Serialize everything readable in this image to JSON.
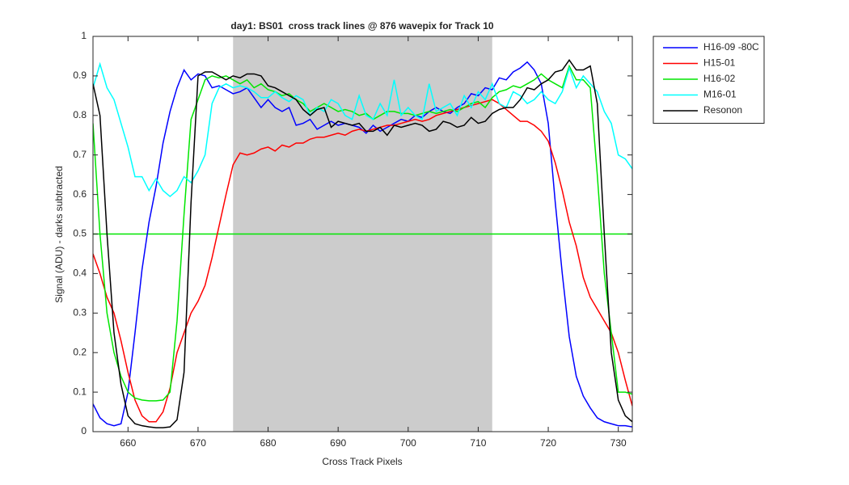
{
  "chart_data": {
    "type": "line",
    "title": "day1: BS01  cross track lines @ 876 wavepix for Track 10",
    "x_label": "Cross Track Pixels",
    "y_label": "Signal (ADU) - darks subtracted",
    "xlim": [
      655,
      732
    ],
    "ylim": [
      0,
      1
    ],
    "xticks": [
      660,
      670,
      680,
      690,
      700,
      710,
      720,
      730
    ],
    "yticks": [
      0,
      0.1,
      0.2,
      0.3,
      0.4,
      0.5,
      0.6,
      0.7,
      0.8,
      0.9,
      1
    ],
    "shade": {
      "xlim": [
        675,
        712
      ],
      "color": "#cccccc"
    },
    "hline": {
      "value": 0.5,
      "color": "#00e600"
    },
    "legend": "outside-top-right",
    "x": [
      655,
      656,
      657,
      658,
      659,
      660,
      661,
      662,
      663,
      664,
      665,
      666,
      667,
      668,
      669,
      670,
      671,
      672,
      673,
      674,
      675,
      676,
      677,
      678,
      679,
      680,
      681,
      682,
      683,
      684,
      685,
      686,
      687,
      688,
      689,
      690,
      691,
      692,
      693,
      694,
      695,
      696,
      697,
      698,
      699,
      700,
      701,
      702,
      703,
      704,
      705,
      706,
      707,
      708,
      709,
      710,
      711,
      712,
      713,
      714,
      715,
      716,
      717,
      718,
      719,
      720,
      721,
      722,
      723,
      724,
      725,
      726,
      727,
      728,
      729,
      730,
      731,
      732
    ],
    "series": [
      {
        "name": "H16-09 -80C",
        "color": "#0000ff",
        "values": [
          0.07,
          0.035,
          0.02,
          0.015,
          0.02,
          0.1,
          0.25,
          0.41,
          0.53,
          0.62,
          0.73,
          0.81,
          0.87,
          0.915,
          0.89,
          0.905,
          0.9,
          0.87,
          0.875,
          0.865,
          0.855,
          0.86,
          0.87,
          0.845,
          0.82,
          0.84,
          0.82,
          0.81,
          0.82,
          0.775,
          0.78,
          0.79,
          0.765,
          0.775,
          0.785,
          0.775,
          0.78,
          0.775,
          0.77,
          0.755,
          0.775,
          0.76,
          0.77,
          0.78,
          0.79,
          0.785,
          0.8,
          0.795,
          0.81,
          0.82,
          0.81,
          0.805,
          0.82,
          0.83,
          0.855,
          0.85,
          0.87,
          0.865,
          0.895,
          0.89,
          0.91,
          0.92,
          0.935,
          0.915,
          0.88,
          0.78,
          0.58,
          0.4,
          0.24,
          0.14,
          0.09,
          0.06,
          0.035,
          0.025,
          0.02,
          0.015,
          0.015,
          0.012
        ]
      },
      {
        "name": "H15-01",
        "color": "#ff0000",
        "values": [
          0.45,
          0.4,
          0.34,
          0.3,
          0.23,
          0.15,
          0.08,
          0.04,
          0.025,
          0.025,
          0.05,
          0.11,
          0.2,
          0.25,
          0.3,
          0.33,
          0.37,
          0.44,
          0.52,
          0.6,
          0.675,
          0.705,
          0.7,
          0.705,
          0.715,
          0.72,
          0.71,
          0.725,
          0.72,
          0.73,
          0.73,
          0.74,
          0.745,
          0.745,
          0.75,
          0.755,
          0.75,
          0.76,
          0.765,
          0.76,
          0.765,
          0.77,
          0.775,
          0.775,
          0.78,
          0.785,
          0.79,
          0.785,
          0.79,
          0.8,
          0.805,
          0.81,
          0.815,
          0.82,
          0.825,
          0.83,
          0.835,
          0.84,
          0.83,
          0.815,
          0.8,
          0.785,
          0.785,
          0.775,
          0.76,
          0.735,
          0.68,
          0.61,
          0.53,
          0.47,
          0.39,
          0.34,
          0.31,
          0.28,
          0.25,
          0.2,
          0.13,
          0.065
        ]
      },
      {
        "name": "H16-02",
        "color": "#00e600",
        "values": [
          0.78,
          0.5,
          0.3,
          0.2,
          0.14,
          0.1,
          0.085,
          0.08,
          0.078,
          0.078,
          0.08,
          0.1,
          0.28,
          0.55,
          0.79,
          0.84,
          0.89,
          0.9,
          0.895,
          0.9,
          0.89,
          0.88,
          0.89,
          0.87,
          0.88,
          0.865,
          0.86,
          0.85,
          0.855,
          0.84,
          0.83,
          0.81,
          0.82,
          0.83,
          0.82,
          0.81,
          0.815,
          0.81,
          0.8,
          0.805,
          0.79,
          0.8,
          0.81,
          0.81,
          0.805,
          0.805,
          0.8,
          0.805,
          0.81,
          0.805,
          0.81,
          0.815,
          0.81,
          0.82,
          0.83,
          0.835,
          0.82,
          0.845,
          0.86,
          0.865,
          0.875,
          0.87,
          0.88,
          0.89,
          0.905,
          0.89,
          0.88,
          0.87,
          0.925,
          0.89,
          0.89,
          0.87,
          0.65,
          0.4,
          0.25,
          0.1,
          0.1,
          0.095
        ]
      },
      {
        "name": "M16-01",
        "color": "#00ffff",
        "values": [
          0.87,
          0.93,
          0.87,
          0.84,
          0.78,
          0.72,
          0.645,
          0.645,
          0.61,
          0.64,
          0.61,
          0.595,
          0.61,
          0.645,
          0.63,
          0.66,
          0.7,
          0.83,
          0.87,
          0.88,
          0.87,
          0.875,
          0.87,
          0.86,
          0.845,
          0.845,
          0.86,
          0.845,
          0.835,
          0.85,
          0.84,
          0.8,
          0.82,
          0.81,
          0.84,
          0.83,
          0.8,
          0.79,
          0.85,
          0.8,
          0.79,
          0.83,
          0.8,
          0.89,
          0.8,
          0.82,
          0.8,
          0.79,
          0.88,
          0.81,
          0.82,
          0.83,
          0.8,
          0.85,
          0.82,
          0.86,
          0.84,
          0.88,
          0.83,
          0.82,
          0.86,
          0.85,
          0.83,
          0.84,
          0.86,
          0.84,
          0.83,
          0.86,
          0.92,
          0.87,
          0.9,
          0.88,
          0.86,
          0.81,
          0.78,
          0.7,
          0.69,
          0.665
        ]
      },
      {
        "name": "Resonon",
        "color": "#000000",
        "values": [
          0.88,
          0.8,
          0.5,
          0.25,
          0.12,
          0.04,
          0.02,
          0.015,
          0.012,
          0.01,
          0.01,
          0.012,
          0.03,
          0.15,
          0.58,
          0.9,
          0.91,
          0.91,
          0.9,
          0.89,
          0.9,
          0.895,
          0.905,
          0.905,
          0.9,
          0.875,
          0.87,
          0.86,
          0.85,
          0.84,
          0.815,
          0.8,
          0.815,
          0.82,
          0.77,
          0.785,
          0.78,
          0.775,
          0.78,
          0.76,
          0.76,
          0.77,
          0.75,
          0.775,
          0.77,
          0.775,
          0.78,
          0.775,
          0.76,
          0.765,
          0.785,
          0.78,
          0.77,
          0.775,
          0.795,
          0.78,
          0.785,
          0.805,
          0.815,
          0.82,
          0.82,
          0.84,
          0.87,
          0.865,
          0.88,
          0.89,
          0.91,
          0.915,
          0.94,
          0.915,
          0.915,
          0.925,
          0.83,
          0.5,
          0.2,
          0.08,
          0.04,
          0.025
        ]
      }
    ]
  }
}
